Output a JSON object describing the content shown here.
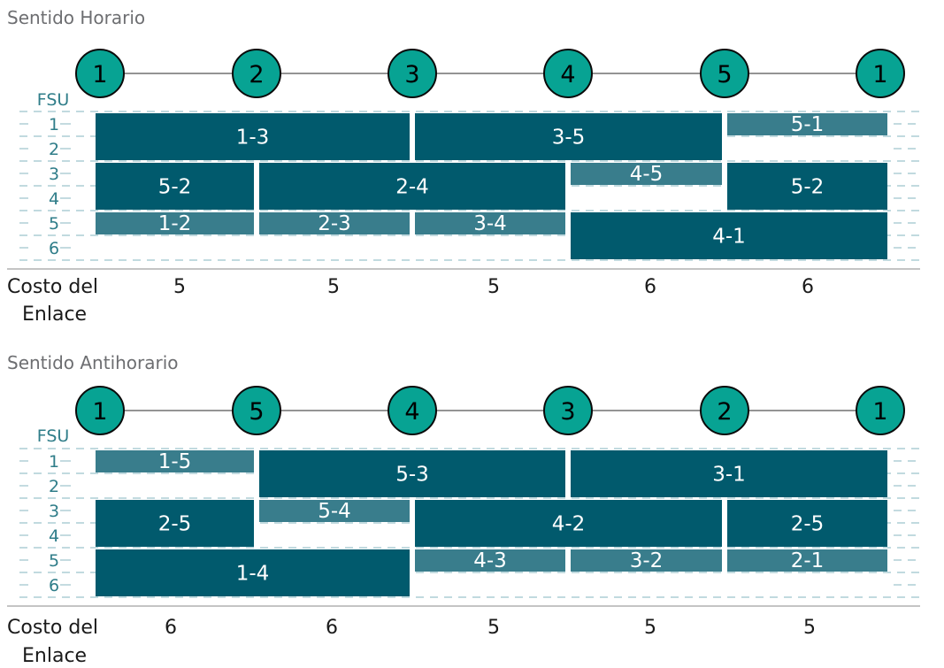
{
  "colors": {
    "node_fill": "#07a393",
    "node_stroke": "#0a0a0a",
    "block_dark": "#015a6d",
    "block_light": "#397d8c",
    "fsu_text": "#2f7d89",
    "grid_dash": "#9cc3cc"
  },
  "sections": [
    {
      "title": "Sentido Horario",
      "nodes": [
        "1",
        "2",
        "3",
        "4",
        "5",
        "1"
      ],
      "fsu_header": "FSU",
      "fsu_labels": [
        "1",
        "2",
        "3",
        "4",
        "5",
        "6"
      ],
      "cost_label_line1": "Costo del",
      "cost_label_line2": "Enlace",
      "costs": [
        "5",
        "5",
        "5",
        "6",
        "6"
      ],
      "blocks": [
        {
          "label": "1-3",
          "link_start": 0,
          "link_span": 2,
          "fsu_start": 1,
          "fsu_count": 2,
          "shade": "dark"
        },
        {
          "label": "3-5",
          "link_start": 2,
          "link_span": 2,
          "fsu_start": 1,
          "fsu_count": 2,
          "shade": "dark"
        },
        {
          "label": "5-1",
          "link_start": 4,
          "link_span": 1,
          "fsu_start": 1,
          "fsu_count": 1,
          "shade": "light"
        },
        {
          "label": "5-2",
          "link_start": 0,
          "link_span": 1,
          "fsu_start": 3,
          "fsu_count": 2,
          "shade": "dark"
        },
        {
          "label": "2-4",
          "link_start": 1,
          "link_span": 2,
          "fsu_start": 3,
          "fsu_count": 2,
          "shade": "dark"
        },
        {
          "label": "4-5",
          "link_start": 3,
          "link_span": 1,
          "fsu_start": 3,
          "fsu_count": 1,
          "shade": "light"
        },
        {
          "label": "5-2",
          "link_start": 4,
          "link_span": 1,
          "fsu_start": 3,
          "fsu_count": 2,
          "shade": "dark"
        },
        {
          "label": "1-2",
          "link_start": 0,
          "link_span": 1,
          "fsu_start": 5,
          "fsu_count": 1,
          "shade": "light"
        },
        {
          "label": "2-3",
          "link_start": 1,
          "link_span": 1,
          "fsu_start": 5,
          "fsu_count": 1,
          "shade": "light"
        },
        {
          "label": "3-4",
          "link_start": 2,
          "link_span": 1,
          "fsu_start": 5,
          "fsu_count": 1,
          "shade": "light"
        },
        {
          "label": "4-1",
          "link_start": 3,
          "link_span": 2,
          "fsu_start": 5,
          "fsu_count": 2,
          "shade": "dark"
        }
      ]
    },
    {
      "title": "Sentido Antihorario",
      "nodes": [
        "1",
        "5",
        "4",
        "3",
        "2",
        "1"
      ],
      "fsu_header": "FSU",
      "fsu_labels": [
        "1",
        "2",
        "3",
        "4",
        "5",
        "6"
      ],
      "cost_label_line1": "Costo del",
      "cost_label_line2": "Enlace",
      "costs": [
        "6",
        "6",
        "5",
        "5",
        "5"
      ],
      "blocks": [
        {
          "label": "1-5",
          "link_start": 0,
          "link_span": 1,
          "fsu_start": 1,
          "fsu_count": 1,
          "shade": "light"
        },
        {
          "label": "5-3",
          "link_start": 1,
          "link_span": 2,
          "fsu_start": 1,
          "fsu_count": 2,
          "shade": "dark"
        },
        {
          "label": "3-1",
          "link_start": 3,
          "link_span": 2,
          "fsu_start": 1,
          "fsu_count": 2,
          "shade": "dark"
        },
        {
          "label": "2-5",
          "link_start": 0,
          "link_span": 1,
          "fsu_start": 3,
          "fsu_count": 2,
          "shade": "dark"
        },
        {
          "label": "5-4",
          "link_start": 1,
          "link_span": 1,
          "fsu_start": 3,
          "fsu_count": 1,
          "shade": "light"
        },
        {
          "label": "4-2",
          "link_start": 2,
          "link_span": 2,
          "fsu_start": 3,
          "fsu_count": 2,
          "shade": "dark"
        },
        {
          "label": "2-5",
          "link_start": 4,
          "link_span": 1,
          "fsu_start": 3,
          "fsu_count": 2,
          "shade": "dark"
        },
        {
          "label": "1-4",
          "link_start": 0,
          "link_span": 2,
          "fsu_start": 5,
          "fsu_count": 2,
          "shade": "dark"
        },
        {
          "label": "4-3",
          "link_start": 2,
          "link_span": 1,
          "fsu_start": 5,
          "fsu_count": 1,
          "shade": "light"
        },
        {
          "label": "3-2",
          "link_start": 3,
          "link_span": 1,
          "fsu_start": 5,
          "fsu_count": 1,
          "shade": "light"
        },
        {
          "label": "2-1",
          "link_start": 4,
          "link_span": 1,
          "fsu_start": 5,
          "fsu_count": 1,
          "shade": "light"
        }
      ]
    }
  ]
}
